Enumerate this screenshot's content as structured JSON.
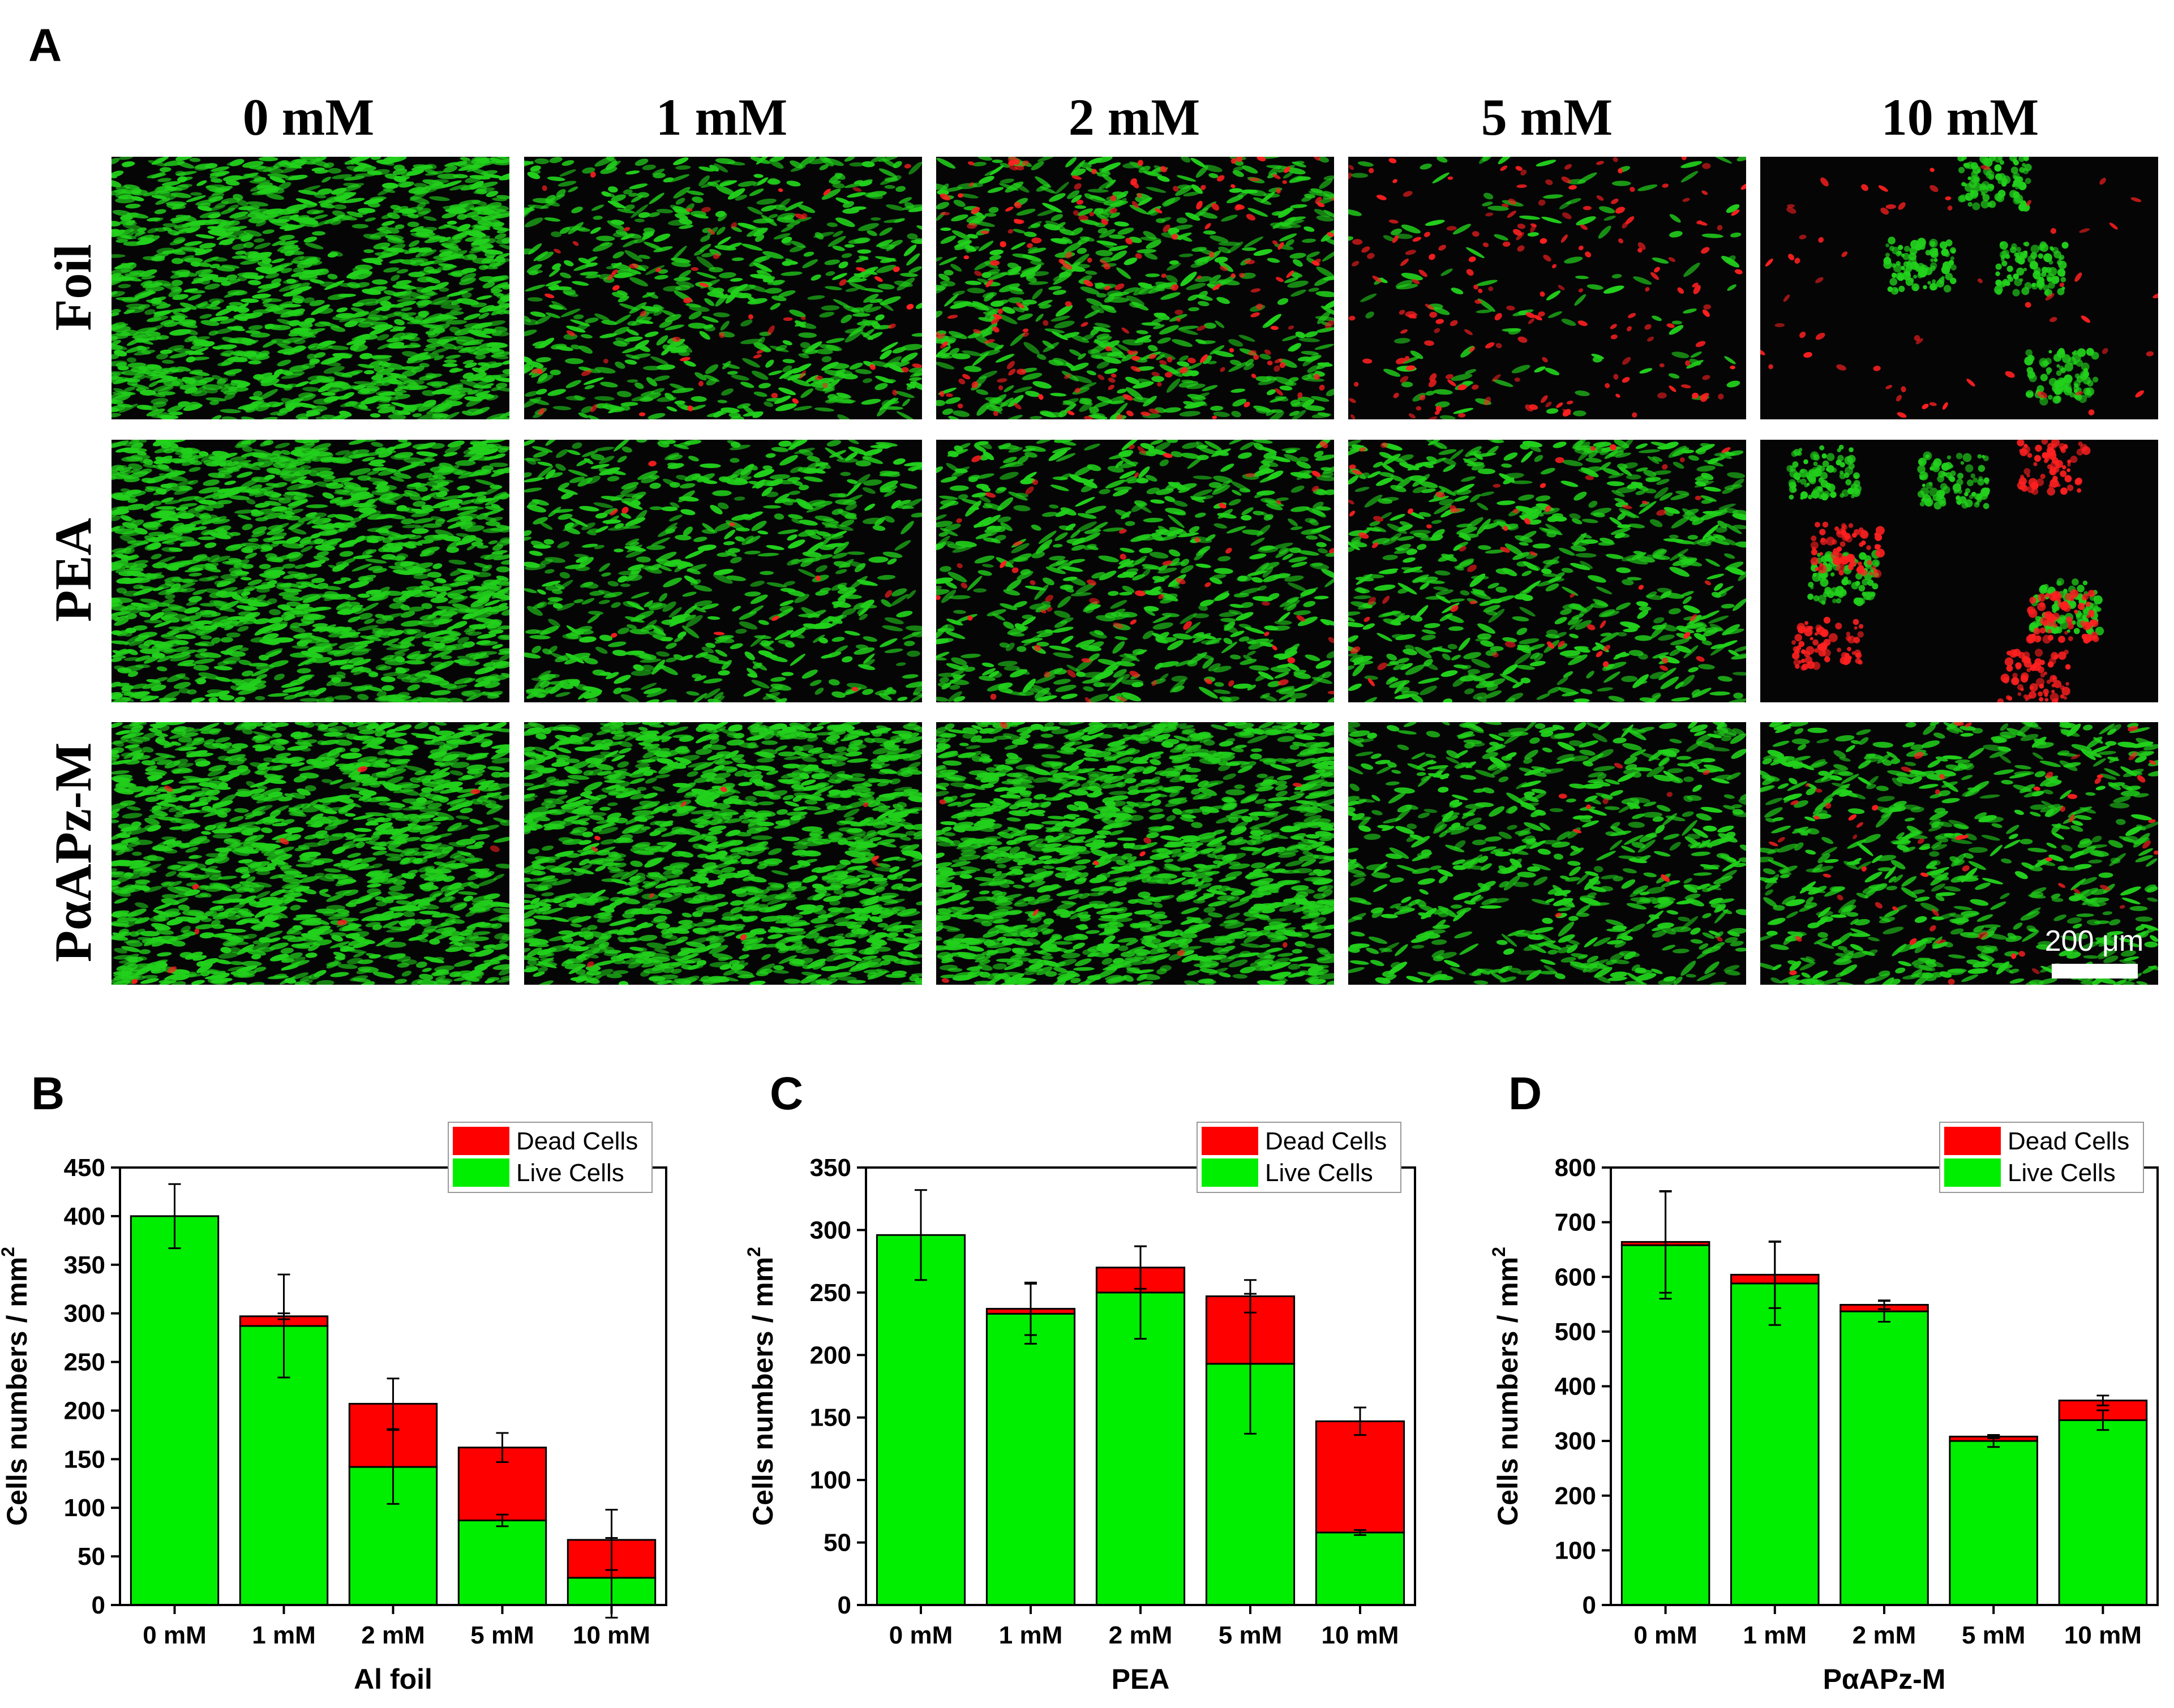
{
  "figure": {
    "panel_a": {
      "letter": "A",
      "columns": [
        "0 mM",
        "1 mM",
        "2 mM",
        "5 mM",
        "10 mM"
      ],
      "rows": [
        "Foil",
        "PEA",
        "PαAPz-M"
      ],
      "scale_bar": "200 μm",
      "image_colors": {
        "live": "#22d11c",
        "dead": "#ff2020",
        "background": "#050505"
      },
      "cell_mix": {
        "Foil": [
          {
            "live": "dense",
            "dead": "none"
          },
          {
            "live": "medium",
            "dead": "some"
          },
          {
            "live": "medium",
            "dead": "many"
          },
          {
            "live": "sparse",
            "dead": "many"
          },
          {
            "live": "clusters",
            "dead": "some"
          }
        ],
        "PEA": [
          {
            "live": "dense",
            "dead": "none"
          },
          {
            "live": "medium",
            "dead": "few"
          },
          {
            "live": "medium",
            "dead": "some"
          },
          {
            "live": "medium",
            "dead": "some"
          },
          {
            "live": "clusters",
            "dead": "many"
          }
        ],
        "PαAPz-M": [
          {
            "live": "dense",
            "dead": "few"
          },
          {
            "live": "dense",
            "dead": "few"
          },
          {
            "live": "dense",
            "dead": "few"
          },
          {
            "live": "medium",
            "dead": "few"
          },
          {
            "live": "medium",
            "dead": "some"
          }
        ]
      }
    },
    "colors": {
      "dead": "#ff0000",
      "live": "#00ee00"
    }
  },
  "chart_data": [
    {
      "panel": "B",
      "type": "bar",
      "stacked": true,
      "categories": [
        "0 mM",
        "1 mM",
        "2 mM",
        "5 mM",
        "10 mM"
      ],
      "series": [
        {
          "name": "Live Cells",
          "values": [
            400,
            287,
            142,
            87,
            28
          ],
          "err": [
            null,
            53,
            38,
            6,
            41
          ]
        },
        {
          "name": "Dead Cells",
          "values": [
            0,
            10,
            65,
            75,
            39
          ],
          "err": [
            33,
            3,
            26,
            15,
            31
          ]
        }
      ],
      "xlabel": "Al foil",
      "ylabel": "Cells numbers / mm",
      "ylabel_sup": "2",
      "ylim": [
        0,
        450
      ],
      "yticks": [
        0,
        50,
        100,
        150,
        200,
        250,
        300,
        350,
        400,
        450
      ],
      "legend": "top-right"
    },
    {
      "panel": "C",
      "type": "bar",
      "stacked": true,
      "categories": [
        "0 mM",
        "1 mM",
        "2 mM",
        "5 mM",
        "10 mM"
      ],
      "series": [
        {
          "name": "Live Cells",
          "values": [
            296,
            233,
            250,
            193,
            58
          ],
          "err": [
            null,
            24,
            37,
            56,
            2
          ]
        },
        {
          "name": "Dead Cells",
          "values": [
            0,
            4,
            20,
            54,
            89
          ],
          "err": [
            36,
            21,
            17,
            13,
            11
          ]
        }
      ],
      "xlabel": "PEA",
      "ylabel": "Cells numbers / mm",
      "ylabel_sup": "2",
      "ylim": [
        0,
        350
      ],
      "yticks": [
        0,
        50,
        100,
        150,
        200,
        250,
        300,
        350
      ],
      "legend": "top-right"
    },
    {
      "panel": "D",
      "type": "bar",
      "stacked": true,
      "categories": [
        "0 mM",
        "1 mM",
        "2 mM",
        "5 mM",
        "10 mM"
      ],
      "series": [
        {
          "name": "Live Cells",
          "values": [
            658,
            588,
            537,
            300,
            338
          ],
          "err": [
            98,
            76,
            19,
            11,
            18
          ]
        },
        {
          "name": "Dead Cells",
          "values": [
            6,
            16,
            12,
            8,
            36
          ],
          "err": [
            93,
            61,
            8,
            3,
            9
          ]
        }
      ],
      "xlabel": "PαAPz-M",
      "ylabel": "Cells numbers / mm",
      "ylabel_sup": "2",
      "ylim": [
        0,
        800
      ],
      "yticks": [
        0,
        100,
        200,
        300,
        400,
        500,
        600,
        700,
        800
      ],
      "legend": "top-right"
    }
  ]
}
